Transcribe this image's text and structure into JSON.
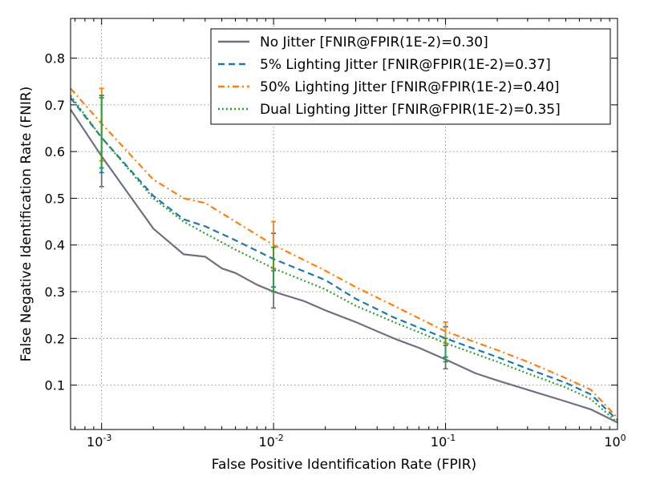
{
  "chart_data": {
    "type": "line",
    "xlabel": "False Positive Identification Rate (FPIR)",
    "ylabel": "False Negative Identification Rate (FNIR)",
    "xscale": "log",
    "xlim": [
      0.00066,
      1.0
    ],
    "ylim": [
      0.005,
      0.885
    ],
    "grid": true,
    "legend_position": "top-right",
    "x_ticks": [
      {
        "value": 0.001,
        "base": "10",
        "exp": "-3"
      },
      {
        "value": 0.01,
        "base": "10",
        "exp": "-2"
      },
      {
        "value": 0.1,
        "base": "10",
        "exp": "-1"
      },
      {
        "value": 1.0,
        "base": "10",
        "exp": "0"
      }
    ],
    "y_ticks": [
      {
        "value": 0.1,
        "label": "0.1"
      },
      {
        "value": 0.2,
        "label": "0.2"
      },
      {
        "value": 0.3,
        "label": "0.3"
      },
      {
        "value": 0.4,
        "label": "0.4"
      },
      {
        "value": 0.5,
        "label": "0.5"
      },
      {
        "value": 0.6,
        "label": "0.6"
      },
      {
        "value": 0.7,
        "label": "0.7"
      },
      {
        "value": 0.8,
        "label": "0.8"
      }
    ],
    "series": [
      {
        "name": "No Jitter [FNIR@FPIR(1E-2)=0.30]",
        "color": "#6b7280",
        "style": "solid",
        "x": [
          0.00066,
          0.001,
          0.002,
          0.003,
          0.004,
          0.005,
          0.006,
          0.008,
          0.01,
          0.015,
          0.02,
          0.03,
          0.05,
          0.07,
          0.1,
          0.15,
          0.2,
          0.3,
          0.5,
          0.7,
          1.0
        ],
        "y": [
          0.69,
          0.59,
          0.435,
          0.38,
          0.375,
          0.35,
          0.34,
          0.315,
          0.3,
          0.28,
          0.26,
          0.235,
          0.2,
          0.18,
          0.155,
          0.125,
          0.11,
          0.09,
          0.065,
          0.048,
          0.02
        ],
        "error_bars": [
          {
            "x": 0.001,
            "y": 0.62,
            "low": 0.525,
            "high": 0.715
          },
          {
            "x": 0.01,
            "y": 0.305,
            "low": 0.265,
            "high": 0.345
          },
          {
            "x": 0.1,
            "y": 0.16,
            "low": 0.135,
            "high": 0.185
          }
        ]
      },
      {
        "name": "5% Lighting Jitter [FNIR@FPIR(1E-2)=0.37]",
        "color": "#1f77b4",
        "style": "dashed",
        "x": [
          0.00066,
          0.001,
          0.002,
          0.003,
          0.004,
          0.006,
          0.01,
          0.02,
          0.03,
          0.05,
          0.1,
          0.2,
          0.3,
          0.5,
          0.7,
          1.0
        ],
        "y": [
          0.715,
          0.63,
          0.505,
          0.455,
          0.44,
          0.41,
          0.37,
          0.325,
          0.285,
          0.245,
          0.2,
          0.16,
          0.135,
          0.105,
          0.08,
          0.025
        ],
        "error_bars": [
          {
            "x": 0.001,
            "y": 0.635,
            "low": 0.555,
            "high": 0.72
          },
          {
            "x": 0.01,
            "y": 0.37,
            "low": 0.31,
            "high": 0.425
          },
          {
            "x": 0.1,
            "y": 0.195,
            "low": 0.16,
            "high": 0.225
          }
        ]
      },
      {
        "name": "50% Lighting Jitter [FNIR@FPIR(1E-2)=0.40]",
        "color": "#ff7f0e",
        "style": "dashdot",
        "x": [
          0.00066,
          0.001,
          0.002,
          0.003,
          0.004,
          0.006,
          0.01,
          0.02,
          0.03,
          0.05,
          0.1,
          0.2,
          0.3,
          0.5,
          0.7,
          1.0
        ],
        "y": [
          0.735,
          0.66,
          0.54,
          0.5,
          0.49,
          0.45,
          0.4,
          0.345,
          0.31,
          0.27,
          0.215,
          0.175,
          0.15,
          0.115,
          0.09,
          0.03
        ],
        "error_bars": [
          {
            "x": 0.001,
            "y": 0.66,
            "low": 0.58,
            "high": 0.735
          },
          {
            "x": 0.01,
            "y": 0.4,
            "low": 0.35,
            "high": 0.45
          },
          {
            "x": 0.1,
            "y": 0.21,
            "low": 0.19,
            "high": 0.235
          }
        ]
      },
      {
        "name": "Dual Lighting Jitter [FNIR@FPIR(1E-2)=0.35]",
        "color": "#2ca02c",
        "style": "dotted",
        "x": [
          0.00066,
          0.001,
          0.002,
          0.003,
          0.004,
          0.006,
          0.01,
          0.02,
          0.03,
          0.05,
          0.1,
          0.2,
          0.3,
          0.5,
          0.7,
          1.0
        ],
        "y": [
          0.72,
          0.63,
          0.5,
          0.45,
          0.425,
          0.39,
          0.35,
          0.305,
          0.27,
          0.235,
          0.19,
          0.15,
          0.125,
          0.095,
          0.07,
          0.02
        ],
        "error_bars": [
          {
            "x": 0.001,
            "y": 0.64,
            "low": 0.565,
            "high": 0.72
          },
          {
            "x": 0.01,
            "y": 0.345,
            "low": 0.3,
            "high": 0.395
          },
          {
            "x": 0.1,
            "y": 0.18,
            "low": 0.15,
            "high": 0.2
          }
        ]
      }
    ]
  }
}
